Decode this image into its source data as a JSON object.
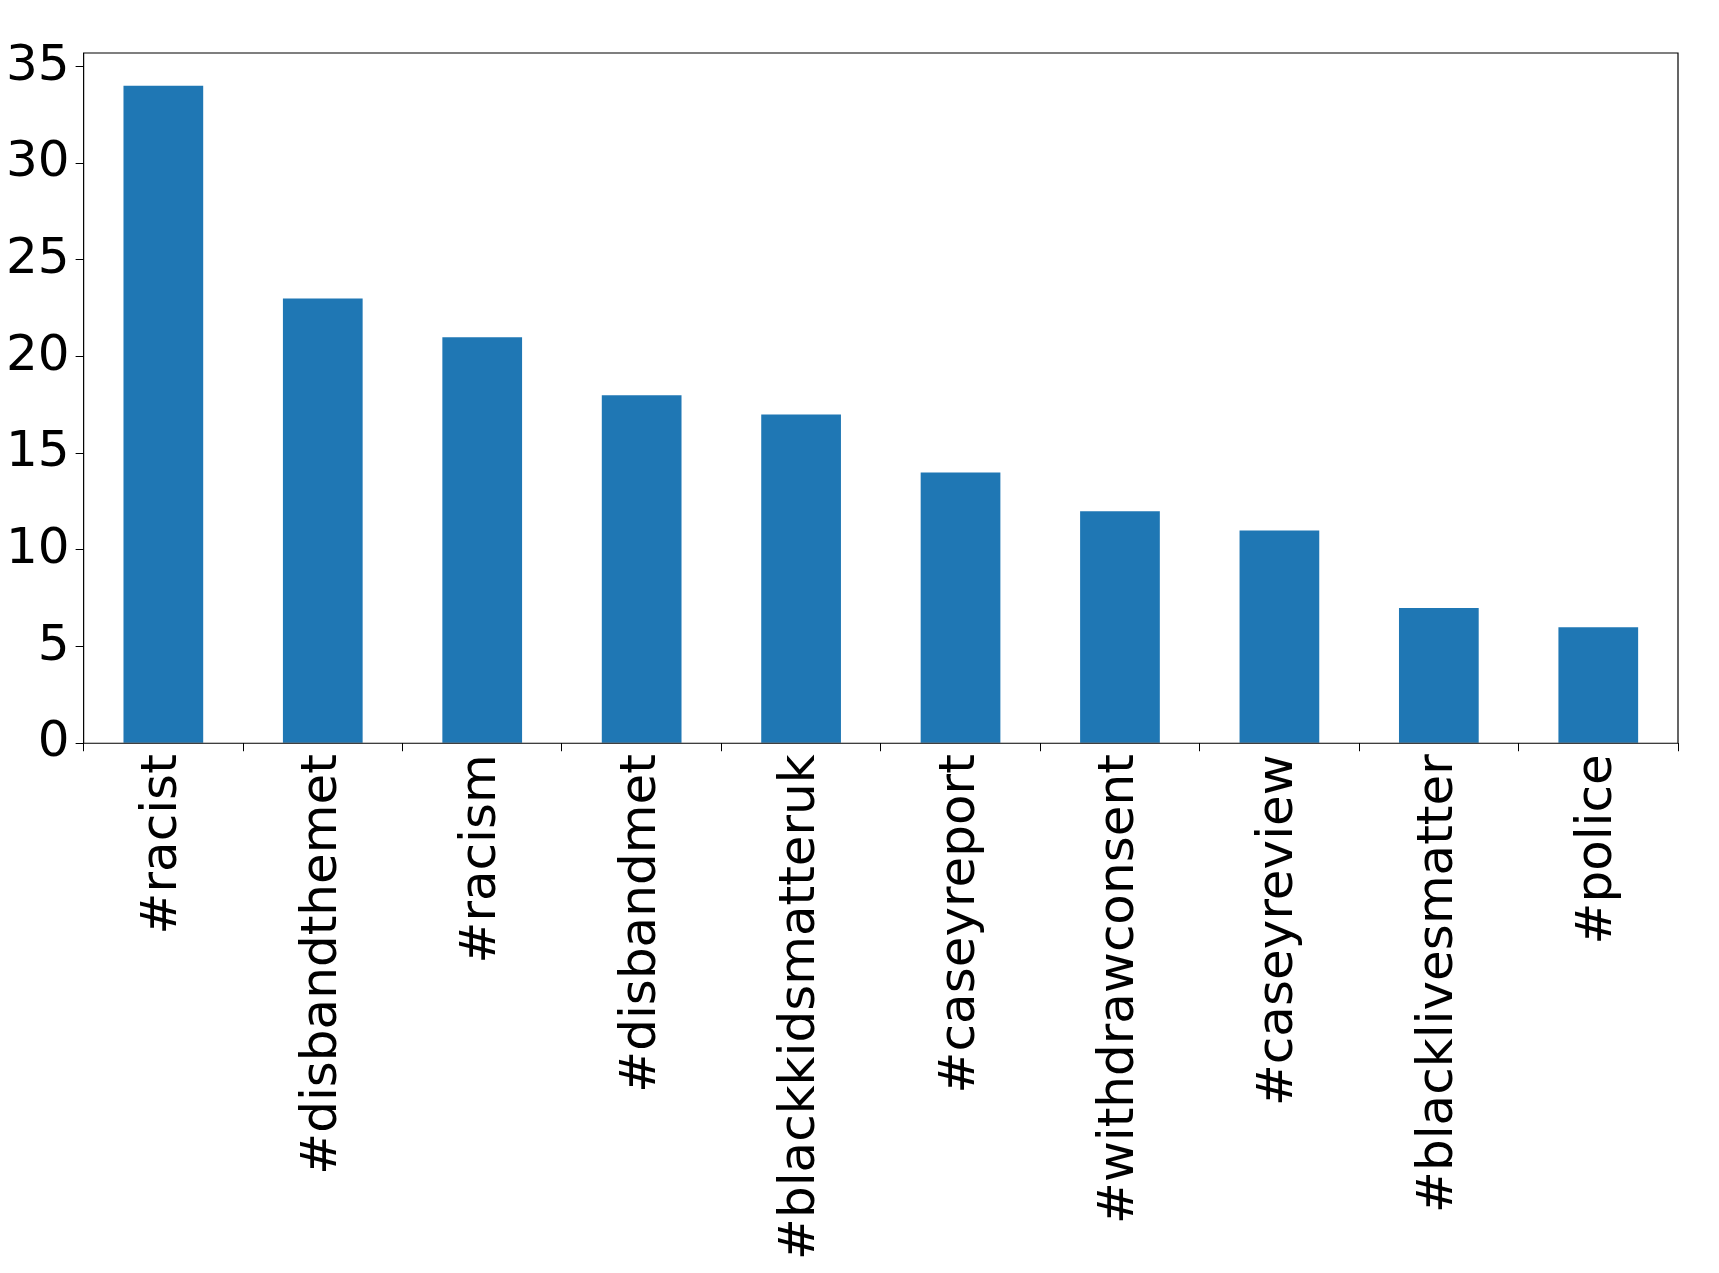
{
  "chart_data": {
    "type": "bar",
    "categories": [
      "#racist",
      "#disbandthemet",
      "#racism",
      "#disbandmet",
      "#blackkidsmatteruk",
      "#caseyreport",
      "#withdrawconsent",
      "#caseyreview",
      "#blacklivesmatter",
      "#police"
    ],
    "values": [
      34,
      23,
      21,
      18,
      17,
      14,
      12,
      11,
      7,
      6
    ],
    "color": "#1f77b4",
    "ylim": [
      0,
      35.7
    ],
    "yticks": [
      0,
      5,
      10,
      15,
      20,
      25,
      30,
      35
    ],
    "grid": false,
    "legend": false
  }
}
